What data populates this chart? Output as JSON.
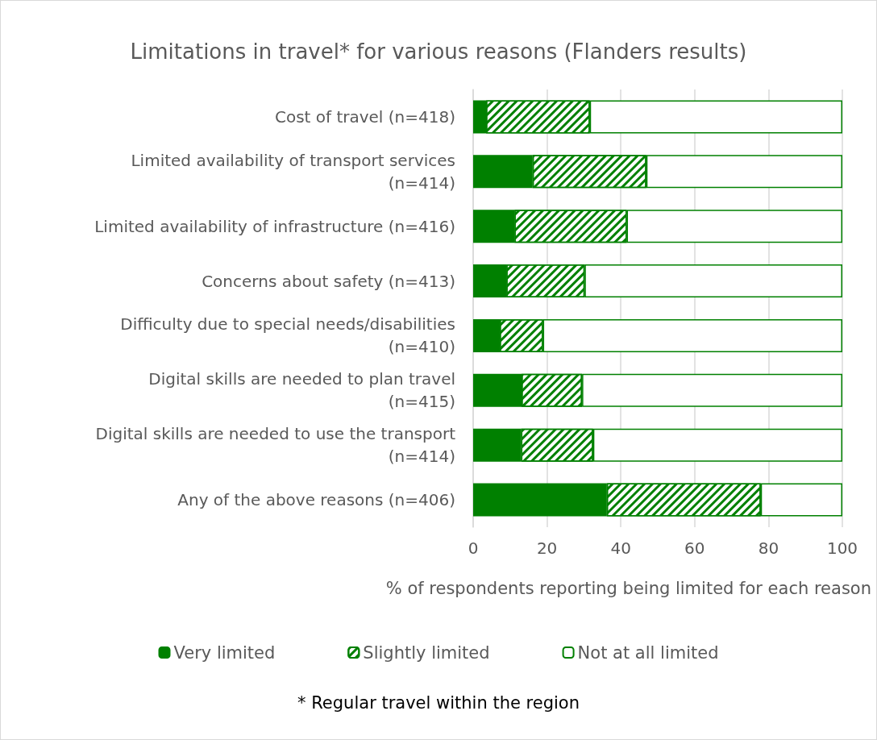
{
  "chart_data": {
    "type": "bar",
    "orientation": "horizontal",
    "stacked": true,
    "title": "Limitations in travel* for various reasons (Flanders results)",
    "xlabel": "% of respondents reporting being limited for each reason",
    "categories": [
      "Cost of travel (n=418)",
      "Limited availability of transport services\n(n=414)",
      "Limited availability of infrastructure (n=416)",
      "Concerns about safety (n=413)",
      "Difficulty due to special needs/disabilities\n(n=410)",
      "Digital skills are needed to plan travel\n(n=415)",
      "Digital skills are needed to use the transport\n(n=414)",
      "Any of the above reasons (n=406)"
    ],
    "series": [
      {
        "name": "Very limited",
        "color": "#008000",
        "values": [
          3.5,
          16.1,
          11.2,
          9.0,
          7.2,
          13.1,
          13.0,
          36.2
        ]
      },
      {
        "name": "Slightly limited",
        "color": "#008000",
        "values": [
          28.1,
          30.8,
          30.4,
          21.2,
          11.7,
          16.4,
          19.5,
          41.7
        ]
      },
      {
        "name": "Not at all limited",
        "color": "#ffffff",
        "values": [
          68.4,
          53.1,
          58.4,
          69.8,
          81.1,
          70.5,
          67.5,
          22.1
        ]
      }
    ],
    "xlim": [
      0,
      100
    ],
    "xticks": [
      0,
      20,
      40,
      60,
      80,
      100
    ],
    "grid": "x",
    "legend": "bottom",
    "annotations": [
      "* Regular travel within the region"
    ]
  }
}
